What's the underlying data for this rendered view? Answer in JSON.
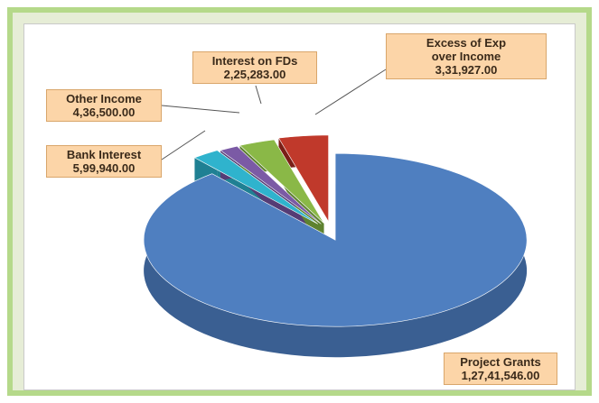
{
  "chart_data": {
    "type": "pie",
    "style": "3d-exploded",
    "legend": "none",
    "slices": [
      {
        "name": "Project Grants",
        "label_value": "1,27,41,546.00",
        "value": 12741546,
        "color": "#4f7fc0",
        "side_color": "#3a5f92"
      },
      {
        "name": "Excess of Exp over Income",
        "label_line1": "Excess of Exp",
        "label_line2": "over Income",
        "label_value": "3,31,927.00",
        "value": 331927,
        "color": "#2fb3cd",
        "side_color": "#1f8093"
      },
      {
        "name": "Interest on FDs",
        "label_value": "2,25,283.00",
        "value": 225283,
        "color": "#7b5aa5",
        "side_color": "#553c75"
      },
      {
        "name": "Other Income",
        "label_value": "4,36,500.00",
        "value": 436500,
        "color": "#8ab847",
        "side_color": "#5e8230"
      },
      {
        "name": "Bank Interest",
        "label_value": "5,99,940.00",
        "value": 599940,
        "color": "#c0392b",
        "side_color": "#7a1f17"
      }
    ]
  }
}
